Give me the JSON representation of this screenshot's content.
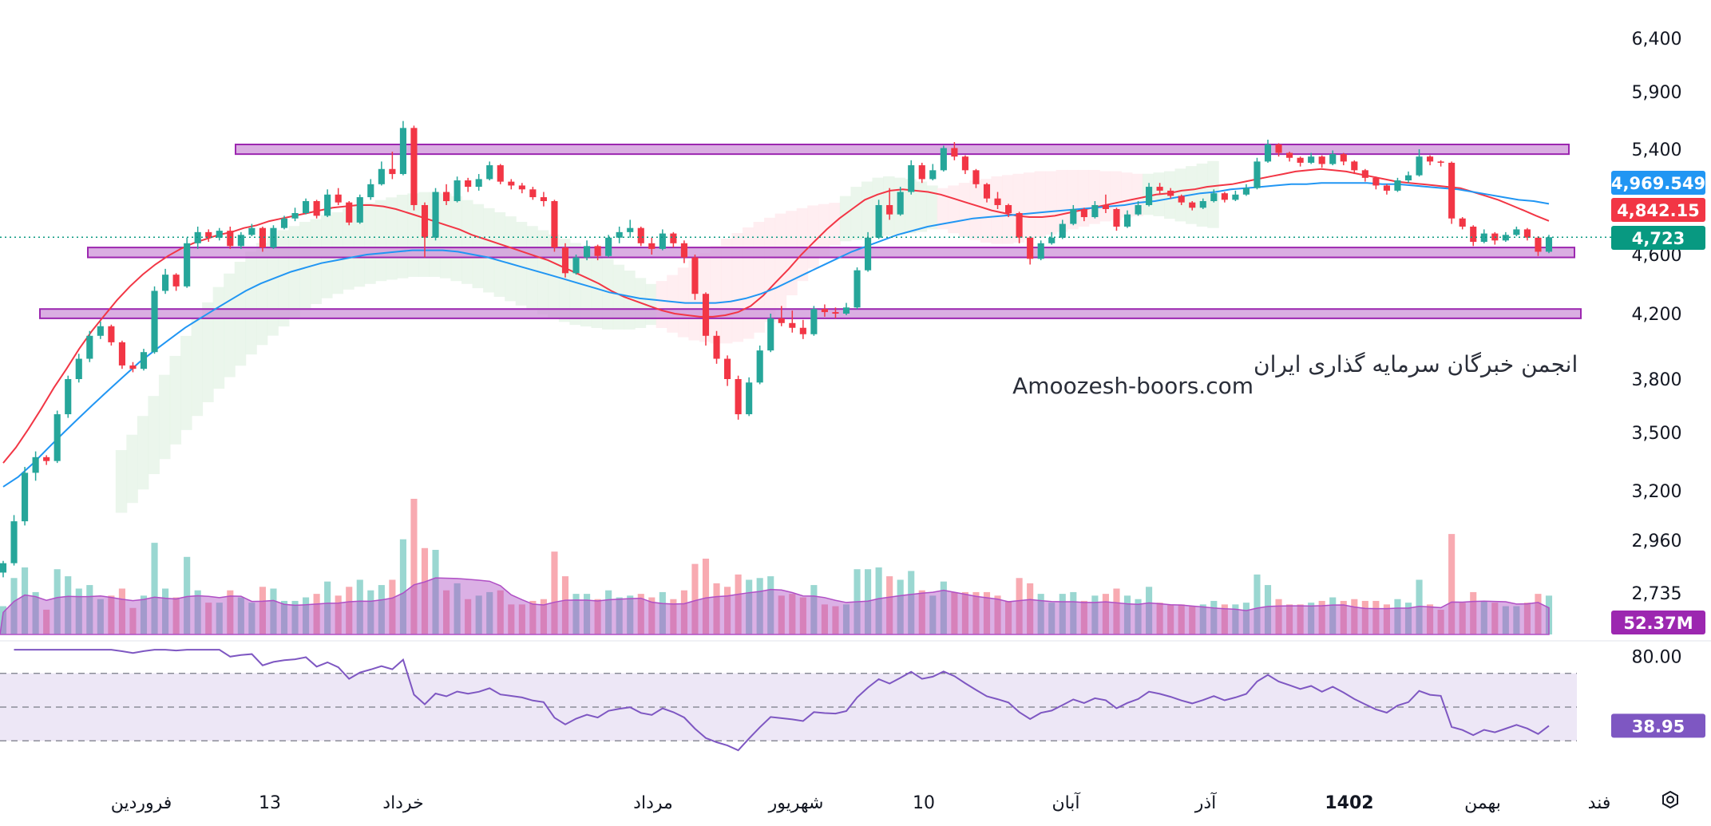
{
  "watermark": {
    "line1": "انجمن خبرگان سرمایه گذاری ایران",
    "line2": "Amoozesh-boors.com"
  },
  "colors": {
    "up": "#26a69a",
    "down": "#f23645",
    "ma_fast": "#f23645",
    "ma_slow": "#2196f3",
    "zone_fill": "#ce93d8",
    "zone_stroke": "#9c27b0",
    "volume_ma": "#b04fc5",
    "rsi_line": "#7e57c2",
    "rsi_band": "#ede7f6",
    "cloud_green": "#e8f5e9",
    "cloud_red": "#ffebee"
  },
  "chart_data": {
    "type": "candlestick",
    "price_axis_ticks": [
      "6,400",
      "5,900",
      "5,400",
      "4,600",
      "4,200",
      "3,800",
      "3,500",
      "3,200",
      "2,960",
      "2,735"
    ],
    "time_axis_labels": [
      "فروردین",
      "13",
      "خرداد",
      "مرداد",
      "شهریور",
      "10",
      "آبان",
      "آذر",
      "1402",
      "بهمن",
      "فند"
    ],
    "price_badges": [
      {
        "label": "4,969.549",
        "color": "#2196f3",
        "price": 4969.549
      },
      {
        "label": "4,842.15",
        "color": "#f23645",
        "price": 4842.15
      },
      {
        "label": "4,723",
        "color": "#089981",
        "price": 4723
      }
    ],
    "current_price": 4723,
    "moving_averages": [
      {
        "color": "#f23645",
        "last": 4842.15
      },
      {
        "color": "#2196f3",
        "last": 4969.549
      }
    ],
    "zones": [
      {
        "low": 5360,
        "high": 5440
      },
      {
        "low": 4580,
        "high": 4650
      },
      {
        "low": 4170,
        "high": 4230
      }
    ],
    "volume": {
      "last_label": "52.37M",
      "badge_color": "#9c27b0"
    },
    "rsi": {
      "scale_label": "80.00",
      "value_label": "38.95",
      "value": 38.95,
      "upper": 70,
      "middle": 50,
      "lower": 30,
      "range": [
        15,
        85
      ]
    },
    "candles": [
      [
        2820,
        2870,
        2800,
        2860
      ],
      [
        2860,
        3080,
        2850,
        3050
      ],
      [
        3050,
        3320,
        3030,
        3290
      ],
      [
        3290,
        3400,
        3250,
        3370
      ],
      [
        3370,
        3380,
        3330,
        3350
      ],
      [
        3350,
        3620,
        3340,
        3600
      ],
      [
        3600,
        3820,
        3580,
        3800
      ],
      [
        3800,
        3950,
        3780,
        3920
      ],
      [
        3920,
        4090,
        3900,
        4060
      ],
      [
        4060,
        4150,
        4040,
        4120
      ],
      [
        4120,
        4130,
        4000,
        4020
      ],
      [
        4020,
        4030,
        3860,
        3880
      ],
      [
        3880,
        3900,
        3840,
        3860
      ],
      [
        3860,
        3980,
        3850,
        3960
      ],
      [
        3960,
        4380,
        3950,
        4350
      ],
      [
        4350,
        4500,
        4330,
        4460
      ],
      [
        4460,
        4470,
        4350,
        4380
      ],
      [
        4380,
        4720,
        4370,
        4680
      ],
      [
        4680,
        4800,
        4640,
        4760
      ],
      [
        4760,
        4780,
        4690,
        4720
      ],
      [
        4720,
        4790,
        4700,
        4770
      ],
      [
        4770,
        4800,
        4640,
        4660
      ],
      [
        4660,
        4760,
        4640,
        4740
      ],
      [
        4740,
        4820,
        4730,
        4790
      ],
      [
        4790,
        4800,
        4620,
        4650
      ],
      [
        4650,
        4810,
        4640,
        4790
      ],
      [
        4790,
        4880,
        4780,
        4860
      ],
      [
        4860,
        4940,
        4840,
        4900
      ],
      [
        4900,
        5010,
        4890,
        4990
      ],
      [
        4990,
        5000,
        4860,
        4880
      ],
      [
        4880,
        5080,
        4870,
        5040
      ],
      [
        5040,
        5090,
        4960,
        4980
      ],
      [
        4980,
        4990,
        4810,
        4830
      ],
      [
        4830,
        5040,
        4820,
        5020
      ],
      [
        5020,
        5160,
        5000,
        5120
      ],
      [
        5120,
        5300,
        5110,
        5240
      ],
      [
        5240,
        5380,
        5160,
        5200
      ],
      [
        5200,
        5640,
        5190,
        5580
      ],
      [
        5580,
        5600,
        4920,
        4960
      ],
      [
        4960,
        4980,
        4580,
        4720
      ],
      [
        4720,
        5090,
        4700,
        5060
      ],
      [
        5060,
        5120,
        4960,
        4990
      ],
      [
        4990,
        5180,
        4980,
        5150
      ],
      [
        5150,
        5170,
        5060,
        5100
      ],
      [
        5100,
        5200,
        5070,
        5160
      ],
      [
        5160,
        5300,
        5150,
        5270
      ],
      [
        5270,
        5280,
        5120,
        5140
      ],
      [
        5140,
        5160,
        5080,
        5110
      ],
      [
        5110,
        5130,
        5050,
        5080
      ],
      [
        5080,
        5100,
        5000,
        5020
      ],
      [
        5020,
        5060,
        4950,
        4990
      ],
      [
        4990,
        5000,
        4620,
        4650
      ],
      [
        4650,
        4680,
        4440,
        4470
      ],
      [
        4470,
        4600,
        4460,
        4580
      ],
      [
        4580,
        4700,
        4560,
        4660
      ],
      [
        4660,
        4670,
        4560,
        4590
      ],
      [
        4590,
        4740,
        4580,
        4720
      ],
      [
        4720,
        4800,
        4680,
        4760
      ],
      [
        4760,
        4850,
        4720,
        4790
      ],
      [
        4790,
        4800,
        4660,
        4680
      ],
      [
        4680,
        4720,
        4600,
        4640
      ],
      [
        4640,
        4780,
        4630,
        4750
      ],
      [
        4750,
        4760,
        4650,
        4680
      ],
      [
        4680,
        4700,
        4540,
        4580
      ],
      [
        4580,
        4600,
        4290,
        4330
      ],
      [
        4330,
        4340,
        4000,
        4060
      ],
      [
        4060,
        4090,
        3890,
        3920
      ],
      [
        3920,
        3940,
        3760,
        3800
      ],
      [
        3800,
        3820,
        3570,
        3600
      ],
      [
        3600,
        3810,
        3590,
        3780
      ],
      [
        3780,
        4000,
        3770,
        3970
      ],
      [
        3970,
        4200,
        3960,
        4170
      ],
      [
        4170,
        4250,
        4120,
        4140
      ],
      [
        4140,
        4220,
        4080,
        4110
      ],
      [
        4110,
        4160,
        4040,
        4070
      ],
      [
        4070,
        4250,
        4060,
        4230
      ],
      [
        4230,
        4260,
        4180,
        4210
      ],
      [
        4210,
        4240,
        4170,
        4200
      ],
      [
        4200,
        4270,
        4190,
        4240
      ],
      [
        4240,
        4510,
        4230,
        4490
      ],
      [
        4490,
        4760,
        4480,
        4720
      ],
      [
        4720,
        5000,
        4710,
        4960
      ],
      [
        4960,
        5090,
        4850,
        4890
      ],
      [
        4890,
        5100,
        4880,
        5060
      ],
      [
        5060,
        5310,
        5040,
        5270
      ],
      [
        5270,
        5290,
        5130,
        5160
      ],
      [
        5160,
        5280,
        5150,
        5230
      ],
      [
        5230,
        5430,
        5220,
        5410
      ],
      [
        5410,
        5460,
        5310,
        5340
      ],
      [
        5340,
        5350,
        5200,
        5230
      ],
      [
        5230,
        5240,
        5090,
        5120
      ],
      [
        5120,
        5130,
        4980,
        5010
      ],
      [
        5010,
        5060,
        4930,
        4960
      ],
      [
        4960,
        4970,
        4870,
        4900
      ],
      [
        4900,
        4910,
        4680,
        4720
      ],
      [
        4720,
        4730,
        4530,
        4570
      ],
      [
        4570,
        4700,
        4560,
        4680
      ],
      [
        4680,
        4760,
        4670,
        4720
      ],
      [
        4720,
        4850,
        4710,
        4820
      ],
      [
        4820,
        4960,
        4810,
        4930
      ],
      [
        4930,
        4940,
        4840,
        4870
      ],
      [
        4870,
        4990,
        4860,
        4960
      ],
      [
        4960,
        5040,
        4900,
        4930
      ],
      [
        4930,
        4940,
        4770,
        4800
      ],
      [
        4800,
        4920,
        4790,
        4890
      ],
      [
        4890,
        4990,
        4880,
        4960
      ],
      [
        4960,
        5130,
        4950,
        5100
      ],
      [
        5100,
        5130,
        5040,
        5070
      ],
      [
        5070,
        5090,
        5010,
        5030
      ],
      [
        5030,
        5040,
        4960,
        4980
      ],
      [
        4980,
        4990,
        4920,
        4940
      ],
      [
        4940,
        5010,
        4930,
        4990
      ],
      [
        4990,
        5080,
        4980,
        5050
      ],
      [
        5050,
        5060,
        4980,
        5000
      ],
      [
        5000,
        5070,
        4990,
        5040
      ],
      [
        5040,
        5120,
        5030,
        5090
      ],
      [
        5090,
        5330,
        5080,
        5300
      ],
      [
        5300,
        5480,
        5290,
        5440
      ],
      [
        5440,
        5450,
        5340,
        5370
      ],
      [
        5370,
        5380,
        5300,
        5330
      ],
      [
        5330,
        5340,
        5260,
        5290
      ],
      [
        5290,
        5370,
        5280,
        5340
      ],
      [
        5340,
        5350,
        5250,
        5280
      ],
      [
        5280,
        5390,
        5270,
        5360
      ],
      [
        5360,
        5370,
        5270,
        5300
      ],
      [
        5300,
        5310,
        5200,
        5230
      ],
      [
        5230,
        5240,
        5140,
        5170
      ],
      [
        5170,
        5180,
        5080,
        5110
      ],
      [
        5110,
        5120,
        5040,
        5070
      ],
      [
        5070,
        5170,
        5060,
        5150
      ],
      [
        5150,
        5220,
        5130,
        5190
      ],
      [
        5190,
        5400,
        5180,
        5340
      ],
      [
        5340,
        5350,
        5270,
        5300
      ],
      [
        5300,
        5310,
        5260,
        5290
      ],
      [
        5290,
        5300,
        4820,
        4860
      ],
      [
        4860,
        4870,
        4780,
        4800
      ],
      [
        4800,
        4810,
        4660,
        4690
      ],
      [
        4690,
        4780,
        4680,
        4750
      ],
      [
        4750,
        4760,
        4670,
        4700
      ],
      [
        4700,
        4760,
        4690,
        4740
      ],
      [
        4740,
        4800,
        4730,
        4780
      ],
      [
        4780,
        4790,
        4700,
        4720
      ],
      [
        4720,
        4730,
        4590,
        4620
      ],
      [
        4620,
        4740,
        4610,
        4723
      ]
    ],
    "ma_fast": [
      3340,
      3420,
      3520,
      3630,
      3750,
      3860,
      3980,
      4090,
      4190,
      4290,
      4380,
      4460,
      4530,
      4590,
      4640,
      4680,
      4710,
      4740,
      4760,
      4790,
      4810,
      4840,
      4860,
      4880,
      4900,
      4920,
      4940,
      4950,
      4960,
      4960,
      4950,
      4930,
      4900,
      4870,
      4840,
      4810,
      4780,
      4740,
      4710,
      4680,
      4650,
      4620,
      4590,
      4560,
      4520,
      4480,
      4440,
      4400,
      4350,
      4310,
      4280,
      4250,
      4220,
      4200,
      4190,
      4180,
      4180,
      4190,
      4210,
      4250,
      4320,
      4410,
      4500,
      4600,
      4690,
      4780,
      4860,
      4930,
      5000,
      5040,
      5070,
      5080,
      5070,
      5060,
      5040,
      5010,
      4980,
      4950,
      4920,
      4900,
      4880,
      4870,
      4870,
      4880,
      4900,
      4920,
      4940,
      4960,
      4980,
      5000,
      5020,
      5040,
      5050,
      5070,
      5080,
      5100,
      5110,
      5120,
      5140,
      5160,
      5180,
      5200,
      5220,
      5230,
      5240,
      5230,
      5220,
      5200,
      5180,
      5160,
      5140,
      5130,
      5120,
      5110,
      5100,
      5090,
      5060,
      5030,
      5000,
      4960,
      4920,
      4880,
      4842.15
    ],
    "ma_slow": [
      3220,
      3270,
      3340,
      3420,
      3500,
      3580,
      3660,
      3740,
      3820,
      3900,
      3970,
      4040,
      4110,
      4170,
      4230,
      4290,
      4350,
      4400,
      4440,
      4480,
      4510,
      4540,
      4560,
      4580,
      4600,
      4610,
      4620,
      4630,
      4630,
      4630,
      4620,
      4600,
      4580,
      4550,
      4520,
      4490,
      4460,
      4430,
      4400,
      4370,
      4340,
      4320,
      4300,
      4290,
      4280,
      4270,
      4270,
      4270,
      4280,
      4300,
      4330,
      4370,
      4420,
      4470,
      4520,
      4570,
      4620,
      4660,
      4700,
      4740,
      4770,
      4800,
      4820,
      4840,
      4860,
      4870,
      4880,
      4890,
      4900,
      4910,
      4920,
      4930,
      4940,
      4950,
      4960,
      4980,
      4990,
      5010,
      5030,
      5050,
      5060,
      5080,
      5090,
      5100,
      5110,
      5120,
      5120,
      5130,
      5130,
      5130,
      5130,
      5120,
      5120,
      5110,
      5100,
      5090,
      5080,
      5060,
      5040,
      5020,
      5000,
      4990,
      4969.549
    ]
  }
}
